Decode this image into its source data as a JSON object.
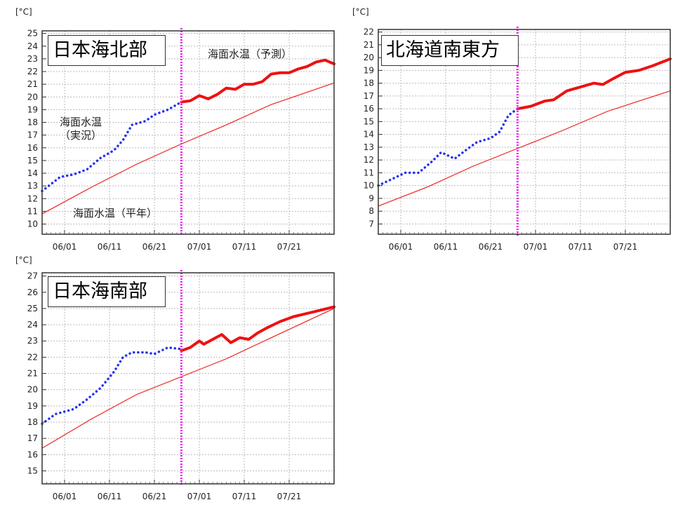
{
  "unit_label": "[°C]",
  "chart_data": [
    {
      "type": "line",
      "title": "日本海北部",
      "xlabel": "",
      "ylabel": "[°C]",
      "x_tick_labels": [
        "06/01",
        "06/11",
        "06/21",
        "07/01",
        "07/11",
        "07/21"
      ],
      "y_ticks": [
        10,
        11,
        12,
        13,
        14,
        15,
        16,
        17,
        18,
        19,
        20,
        21,
        22,
        23,
        24,
        25
      ],
      "ylim": [
        9.2,
        25.2
      ],
      "xlim": [
        "05/27",
        "07/31"
      ],
      "grid": true,
      "marker_line": "06/27",
      "annotations": [
        {
          "text": "海面水温（予測）"
        },
        {
          "text": "海面水温\n（実況）"
        },
        {
          "text": "海面水温（平年）"
        }
      ],
      "series": [
        {
          "name": "海面水温（実況）",
          "style": "dotted",
          "color": "#2233ee",
          "points": [
            [
              "05/27",
              12.6
            ],
            [
              "05/31",
              13.7
            ],
            [
              "06/03",
              13.9
            ],
            [
              "06/06",
              14.3
            ],
            [
              "06/09",
              15.2
            ],
            [
              "06/12",
              15.8
            ],
            [
              "06/14",
              16.6
            ],
            [
              "06/16",
              17.8
            ],
            [
              "06/19",
              18.1
            ],
            [
              "06/21",
              18.6
            ],
            [
              "06/24",
              19.0
            ],
            [
              "06/27",
              19.6
            ]
          ]
        },
        {
          "name": "海面水温（予測）",
          "style": "solid-thick",
          "color": "#ee1111",
          "points": [
            [
              "06/27",
              19.6
            ],
            [
              "06/29",
              19.7
            ],
            [
              "07/01",
              20.1
            ],
            [
              "07/03",
              19.85
            ],
            [
              "07/05",
              20.2
            ],
            [
              "07/07",
              20.7
            ],
            [
              "07/09",
              20.6
            ],
            [
              "07/11",
              21.0
            ],
            [
              "07/13",
              21.0
            ],
            [
              "07/15",
              21.2
            ],
            [
              "07/17",
              21.8
            ],
            [
              "07/19",
              21.9
            ],
            [
              "07/21",
              21.9
            ],
            [
              "07/23",
              22.2
            ],
            [
              "07/25",
              22.4
            ],
            [
              "07/27",
              22.75
            ],
            [
              "07/29",
              22.9
            ],
            [
              "07/31",
              22.6
            ]
          ]
        },
        {
          "name": "海面水温（平年）",
          "style": "solid-thin",
          "color": "#ee3333",
          "points": [
            [
              "05/27",
              10.8
            ],
            [
              "06/07",
              12.9
            ],
            [
              "06/17",
              14.7
            ],
            [
              "06/27",
              16.3
            ],
            [
              "07/07",
              17.8
            ],
            [
              "07/17",
              19.4
            ],
            [
              "07/31",
              21.1
            ]
          ]
        }
      ]
    },
    {
      "type": "line",
      "title": "北海道南東方",
      "xlabel": "",
      "ylabel": "[°C]",
      "x_tick_labels": [
        "06/01",
        "06/11",
        "06/21",
        "07/01",
        "07/11",
        "07/21"
      ],
      "y_ticks": [
        7,
        8,
        9,
        10,
        11,
        12,
        13,
        14,
        15,
        16,
        17,
        18,
        19,
        20,
        21,
        22
      ],
      "ylim": [
        6.2,
        22.2
      ],
      "xlim": [
        "05/27",
        "07/31"
      ],
      "grid": true,
      "marker_line": "06/27",
      "annotations": [],
      "series": [
        {
          "name": "海面水温（実況）",
          "style": "dotted",
          "color": "#2233ee",
          "points": [
            [
              "05/27",
              10.0
            ],
            [
              "05/30",
              10.5
            ],
            [
              "06/02",
              11.0
            ],
            [
              "06/05",
              11.0
            ],
            [
              "06/08",
              11.9
            ],
            [
              "06/10",
              12.6
            ],
            [
              "06/13",
              12.1
            ],
            [
              "06/16",
              12.9
            ],
            [
              "06/18",
              13.4
            ],
            [
              "06/21",
              13.7
            ],
            [
              "06/23",
              14.2
            ],
            [
              "06/25",
              15.5
            ],
            [
              "06/27",
              16.0
            ]
          ]
        },
        {
          "name": "海面水温（予測）",
          "style": "solid-thick",
          "color": "#ee1111",
          "points": [
            [
              "06/27",
              16.0
            ],
            [
              "06/30",
              16.2
            ],
            [
              "07/03",
              16.6
            ],
            [
              "07/05",
              16.7
            ],
            [
              "07/08",
              17.4
            ],
            [
              "07/11",
              17.7
            ],
            [
              "07/14",
              18.0
            ],
            [
              "07/16",
              17.9
            ],
            [
              "07/18",
              18.3
            ],
            [
              "07/21",
              18.85
            ],
            [
              "07/24",
              19.0
            ],
            [
              "07/27",
              19.35
            ],
            [
              "07/31",
              19.9
            ]
          ]
        },
        {
          "name": "海面水温（平年）",
          "style": "solid-thin",
          "color": "#ee3333",
          "points": [
            [
              "05/27",
              8.4
            ],
            [
              "06/07",
              9.9
            ],
            [
              "06/17",
              11.5
            ],
            [
              "06/27",
              12.9
            ],
            [
              "07/07",
              14.3
            ],
            [
              "07/17",
              15.8
            ],
            [
              "07/31",
              17.4
            ]
          ]
        }
      ]
    },
    {
      "type": "line",
      "title": "日本海南部",
      "xlabel": "",
      "ylabel": "[°C]",
      "x_tick_labels": [
        "06/01",
        "06/11",
        "06/21",
        "07/01",
        "07/11",
        "07/21"
      ],
      "y_ticks": [
        15,
        16,
        17,
        18,
        19,
        20,
        21,
        22,
        23,
        24,
        25,
        26,
        27
      ],
      "ylim": [
        14.2,
        27.2
      ],
      "xlim": [
        "05/27",
        "07/31"
      ],
      "grid": true,
      "marker_line": "06/27",
      "annotations": [],
      "series": [
        {
          "name": "海面水温（実況）",
          "style": "dotted",
          "color": "#2233ee",
          "points": [
            [
              "05/27",
              17.9
            ],
            [
              "05/30",
              18.5
            ],
            [
              "06/03",
              18.8
            ],
            [
              "06/06",
              19.4
            ],
            [
              "06/09",
              20.1
            ],
            [
              "06/12",
              21.1
            ],
            [
              "06/14",
              22.0
            ],
            [
              "06/16",
              22.3
            ],
            [
              "06/19",
              22.3
            ],
            [
              "06/21",
              22.2
            ],
            [
              "06/24",
              22.6
            ],
            [
              "06/27",
              22.5
            ]
          ]
        },
        {
          "name": "海面水温（予測）",
          "style": "solid-thick",
          "color": "#ee1111",
          "points": [
            [
              "06/27",
              22.4
            ],
            [
              "06/29",
              22.6
            ],
            [
              "07/01",
              23.0
            ],
            [
              "07/02",
              22.8
            ],
            [
              "07/04",
              23.1
            ],
            [
              "07/06",
              23.4
            ],
            [
              "07/08",
              22.9
            ],
            [
              "07/10",
              23.2
            ],
            [
              "07/12",
              23.1
            ],
            [
              "07/14",
              23.5
            ],
            [
              "07/16",
              23.8
            ],
            [
              "07/19",
              24.2
            ],
            [
              "07/22",
              24.5
            ],
            [
              "07/25",
              24.7
            ],
            [
              "07/28",
              24.9
            ],
            [
              "07/31",
              25.1
            ]
          ]
        },
        {
          "name": "海面水温（平年）",
          "style": "solid-thin",
          "color": "#ee3333",
          "points": [
            [
              "05/27",
              16.4
            ],
            [
              "06/07",
              18.2
            ],
            [
              "06/17",
              19.7
            ],
            [
              "06/27",
              20.8
            ],
            [
              "07/07",
              21.9
            ],
            [
              "07/17",
              23.2
            ],
            [
              "07/31",
              25.0
            ]
          ]
        }
      ]
    }
  ]
}
